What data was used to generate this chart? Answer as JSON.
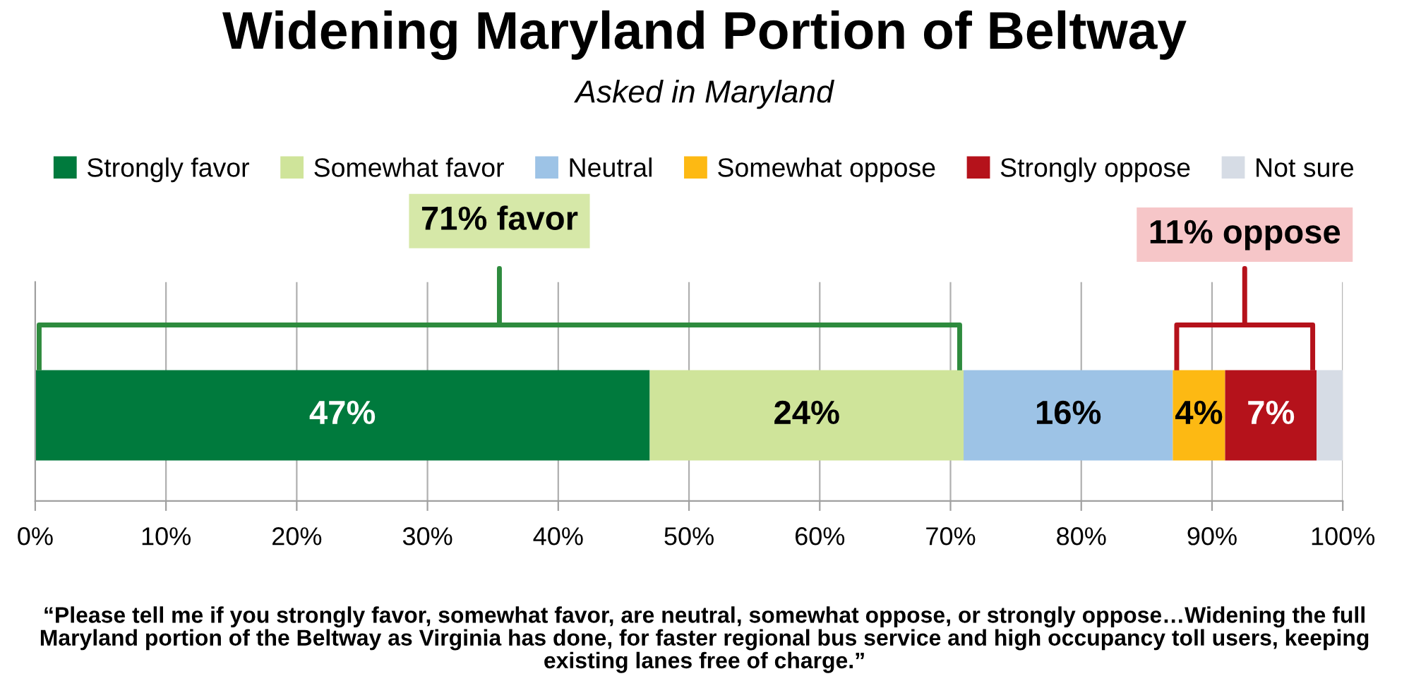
{
  "chart_data": {
    "type": "bar",
    "orientation": "horizontal",
    "stacked": true,
    "title": "Widening Maryland Portion of Beltway",
    "subtitle": "Asked in Maryland",
    "categories": [
      null
    ],
    "series": [
      {
        "name": "Strongly favor",
        "color": "#007a3d",
        "values": [
          47
        ],
        "value_labels": [
          "47%"
        ]
      },
      {
        "name": "Somewhat favor",
        "color": "#cfe49a",
        "values": [
          24
        ],
        "value_labels": [
          "24%"
        ]
      },
      {
        "name": "Neutral",
        "color": "#9dc3e6",
        "values": [
          16
        ],
        "value_labels": [
          "16%"
        ]
      },
      {
        "name": "Somewhat oppose",
        "color": "#fdb913",
        "values": [
          4
        ],
        "value_labels": [
          "4%"
        ]
      },
      {
        "name": "Strongly oppose",
        "color": "#b5121b",
        "values": [
          7
        ],
        "value_labels": [
          "7%"
        ]
      },
      {
        "name": "Not sure",
        "color": "#d6dce5",
        "values": [
          2
        ],
        "value_labels": [
          null
        ]
      }
    ],
    "xlim": [
      0,
      100
    ],
    "xticks": [
      {
        "value": 0,
        "label": "0%"
      },
      {
        "value": 10,
        "label": "10%"
      },
      {
        "value": 20,
        "label": "20%"
      },
      {
        "value": 30,
        "label": "30%"
      },
      {
        "value": 40,
        "label": "40%"
      },
      {
        "value": 50,
        "label": "50%"
      },
      {
        "value": 60,
        "label": "60%"
      },
      {
        "value": 70,
        "label": "70%"
      },
      {
        "value": 80,
        "label": "80%"
      },
      {
        "value": 90,
        "label": "90%"
      },
      {
        "value": 100,
        "label": "100%"
      }
    ],
    "grid": "x",
    "legend": "top",
    "annotations": [
      "71% favor",
      "11% oppose",
      "“Please tell me if you strongly favor, somewhat favor, are neutral, somewhat oppose, or strongly oppose…Widening the full Maryland portion of the Beltway as Virginia has done, for faster regional bus service and high occupancy toll users, keeping existing lanes free of charge.”"
    ]
  }
}
